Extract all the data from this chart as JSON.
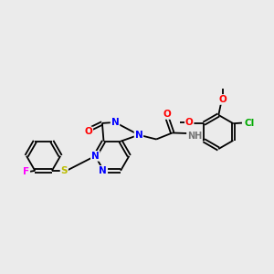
{
  "background_color": "#ebebeb",
  "bond_color": "#000000",
  "figsize": [
    3.0,
    3.0
  ],
  "dpi": 100,
  "atom_colors": {
    "F": "#ff00ff",
    "N": "#0000ff",
    "O": "#ff0000",
    "S": "#bbbb00",
    "Cl": "#00aa00",
    "H": "#777777",
    "C": "#000000"
  },
  "bond_lw": 1.3,
  "font_size": 7.5
}
